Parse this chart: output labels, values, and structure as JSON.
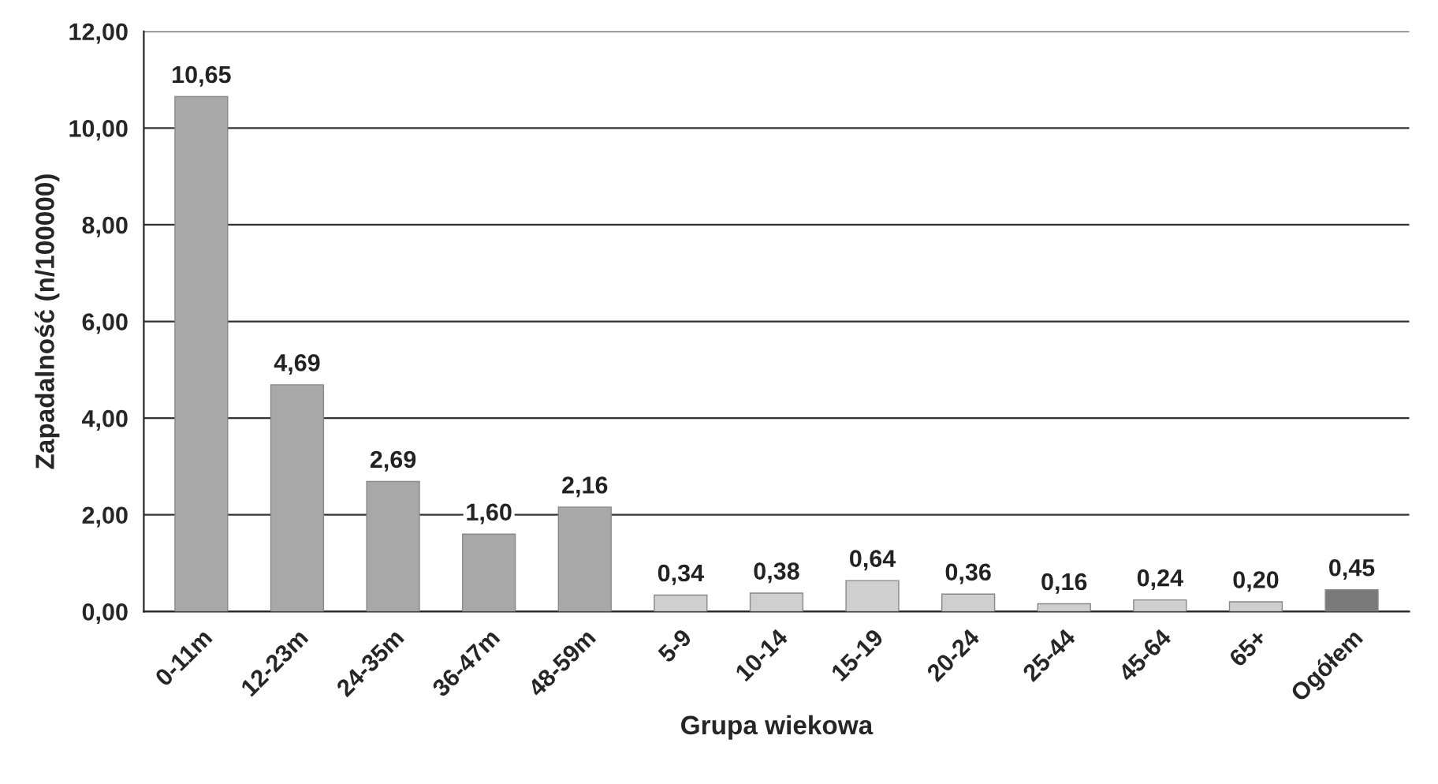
{
  "chart_data": {
    "type": "bar",
    "xlabel": "Grupa wiekowa",
    "ylabel": "Zapadalność (n/100000)",
    "categories": [
      "0-11m",
      "12-23m",
      "24-35m",
      "36-47m",
      "48-59m",
      "5-9",
      "10-14",
      "15-19",
      "20-24",
      "25-44",
      "45-64",
      "65+",
      "Ogółem"
    ],
    "values": [
      10.65,
      4.69,
      2.69,
      1.6,
      2.16,
      0.34,
      0.38,
      0.64,
      0.36,
      0.16,
      0.24,
      0.2,
      0.45
    ],
    "value_labels": [
      "10,65",
      "4,69",
      "2,69",
      "1,60",
      "2,16",
      "0,34",
      "0,38",
      "0,64",
      "0,36",
      "0,16",
      "0,24",
      "0,20",
      "0,45"
    ],
    "colors": [
      "#a8a8a8",
      "#a8a8a8",
      "#a8a8a8",
      "#a8a8a8",
      "#a8a8a8",
      "#cfcfcf",
      "#cfcfcf",
      "#cfcfcf",
      "#cfcfcf",
      "#cfcfcf",
      "#cfcfcf",
      "#cfcfcf",
      "#7a7a7a"
    ],
    "ylim": [
      0,
      12
    ],
    "yticks": [
      {
        "value": 0,
        "label": "0,00"
      },
      {
        "value": 2,
        "label": "2,00"
      },
      {
        "value": 4,
        "label": "4,00"
      },
      {
        "value": 6,
        "label": "6,00"
      },
      {
        "value": 8,
        "label": "8,00"
      },
      {
        "value": 10,
        "label": "10,00"
      },
      {
        "value": 12,
        "label": "12,00"
      }
    ],
    "grid": "y",
    "legend": false
  }
}
